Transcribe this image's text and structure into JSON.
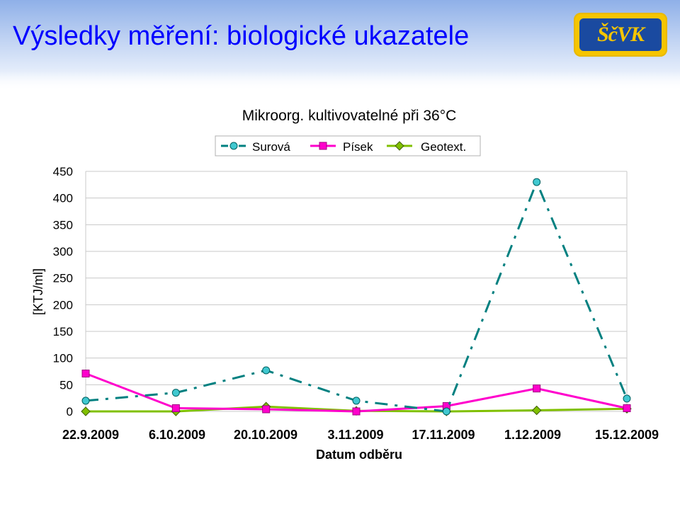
{
  "slide": {
    "title": "Výsledky měření: biologické ukazatele",
    "logo_text": "ŠčVK"
  },
  "colors": {
    "title": "#0000ff",
    "series_surova": "#008080",
    "series_pisek": "#ff00cc",
    "series_geotext": "#80c000"
  },
  "chart_data": {
    "type": "line",
    "title": "Mikroorg. kultivovatelné při 36°C",
    "xlabel": "Datum odběru",
    "ylabel": "[KTJ/ml]",
    "ylim": [
      0,
      450
    ],
    "yticks": [
      0,
      50,
      100,
      150,
      200,
      250,
      300,
      350,
      400,
      450
    ],
    "grid": true,
    "legend": "top",
    "categories": [
      "22.9.2009",
      "6.10.2009",
      "20.10.2009",
      "3.11.2009",
      "17.11.2009",
      "1.12.2009",
      "15.12.2009"
    ],
    "series": [
      {
        "name": "Surová",
        "values": [
          20,
          35,
          77,
          20,
          0,
          430,
          24
        ],
        "color": "#008080",
        "marker": "circle",
        "dash": "dashdot"
      },
      {
        "name": "Písek",
        "values": [
          71,
          6,
          4,
          0,
          10,
          43,
          6
        ],
        "color": "#ff00cc",
        "marker": "square",
        "dash": "solid"
      },
      {
        "name": "Geotext.",
        "values": [
          0,
          0,
          9,
          1,
          0,
          2,
          5
        ],
        "color": "#80c000",
        "marker": "diamond",
        "dash": "solid"
      }
    ]
  }
}
